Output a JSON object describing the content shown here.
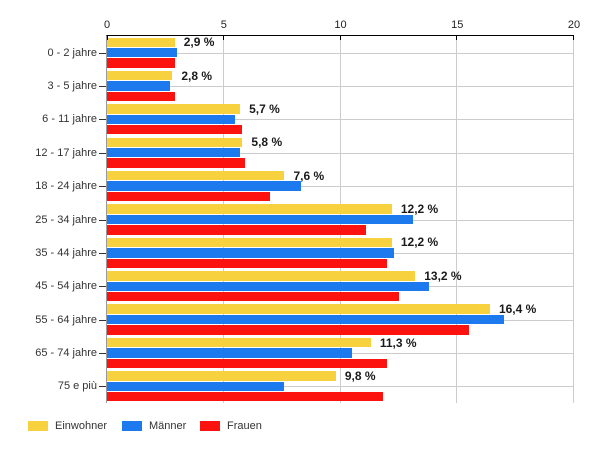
{
  "chart_data": {
    "type": "bar",
    "orientation": "horizontal",
    "title": "",
    "xlabel": "",
    "ylabel": "",
    "xlim": [
      0,
      20
    ],
    "x_ticks": [
      "0",
      "5",
      "10",
      "15",
      "20"
    ],
    "x_tick_values": [
      0,
      5,
      10,
      15,
      20
    ],
    "grid": true,
    "legend_position": "bottom-left",
    "categories": [
      "0 - 2 jahre",
      "3 - 5 jahre",
      "6 - 11 jahre",
      "12 - 17 jahre",
      "18 - 24 jahre",
      "25 - 34 jahre",
      "35 - 44 jahre",
      "45 - 54 jahre",
      "55 - 64 jahre",
      "65 - 74 jahre",
      "75 e più"
    ],
    "series": [
      {
        "name": "Einwohner",
        "color": "#F8D13E",
        "values": [
          2.9,
          2.8,
          5.7,
          5.8,
          7.6,
          12.2,
          12.2,
          13.2,
          16.4,
          11.3,
          9.8
        ],
        "labels": [
          "2,9 %",
          "2,8 %",
          "5,7 %",
          "5,8 %",
          "7,6 %",
          "12,2 %",
          "12,2 %",
          "13,2 %",
          "16,4 %",
          "11,3 %",
          "9,8 %"
        ]
      },
      {
        "name": "Männer",
        "color": "#1D7AEE",
        "values": [
          3.0,
          2.7,
          5.5,
          5.7,
          8.3,
          13.1,
          12.3,
          13.8,
          17.0,
          10.5,
          7.6
        ]
      },
      {
        "name": "Frauen",
        "color": "#FC120F",
        "values": [
          2.9,
          2.9,
          5.8,
          5.9,
          7.0,
          11.1,
          12.0,
          12.5,
          15.5,
          12.0,
          11.8
        ]
      }
    ]
  },
  "legend": {
    "items": [
      {
        "label": "Einwohner",
        "color": "#F8D13E"
      },
      {
        "label": "Männer",
        "color": "#1D7AEE"
      },
      {
        "label": "Frauen",
        "color": "#FC120F"
      }
    ],
    "item_x": [
      28,
      122,
      200
    ]
  },
  "colors": {
    "axis": "#000000",
    "y_axis": "#999999",
    "grid": "#CCCCCC",
    "tick_text": "#222222",
    "category_text": "#333333",
    "data_label_text": "#1A1A1A",
    "background": "#FFFFFF"
  }
}
